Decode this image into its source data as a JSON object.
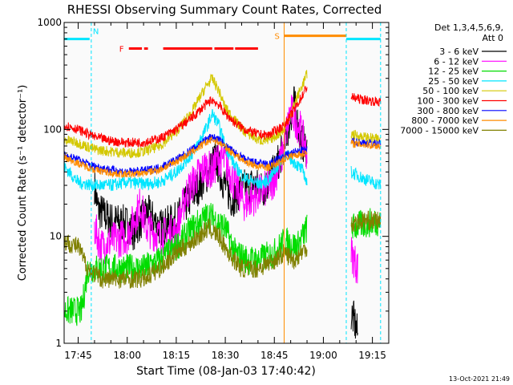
{
  "chart_data": {
    "type": "line",
    "title": "RHESSI Observing Summary Count Rates, Corrected",
    "xlabel": "Start Time (08-Jan-03 17:40:42)",
    "ylabel": "Corrected Count Rate (s⁻¹ detector⁻¹)",
    "yscale": "log",
    "ylim": [
      1,
      1000
    ],
    "xlim": [
      "17:40:42",
      "19:20:00"
    ],
    "x_ticks": [
      "17:45",
      "18:00",
      "18:15",
      "18:30",
      "18:45",
      "19:00",
      "19:15"
    ],
    "y_ticks": [
      "1",
      "10",
      "100",
      "1000"
    ],
    "legend_position": "top-right",
    "legend_title": [
      "Det 1,3,4,5,6,9,",
      "Att 0"
    ],
    "timestamp": "13-Oct-2021 21:49",
    "flags": [
      {
        "label": "N",
        "color": "#00e5ff",
        "segments": [
          [
            "17:40:42",
            "17:48:30"
          ],
          [
            "19:07:00",
            "19:17:30"
          ]
        ],
        "level": 700
      },
      {
        "label": "F",
        "color": "#ff0000",
        "segments": [
          [
            "18:00:30",
            "18:04:30"
          ],
          [
            "18:05:10",
            "18:06:20"
          ],
          [
            "18:11:00",
            "18:26:00"
          ],
          [
            "18:26:40",
            "18:32:30"
          ],
          [
            "18:33:00",
            "18:40:00"
          ]
        ],
        "level": 570
      },
      {
        "label": "S",
        "color": "#ff8c00",
        "segments": [
          [
            "18:48:00",
            "19:07:00"
          ]
        ],
        "level": 750
      }
    ],
    "vertical_markers": [
      {
        "time": "17:49:00",
        "color": "#00e5ff"
      },
      {
        "time": "18:48:00",
        "color": "#ff8c00"
      },
      {
        "time": "19:07:00",
        "color": "#00e5ff"
      },
      {
        "time": "19:17:30",
        "color": "#00e5ff"
      }
    ],
    "series": [
      {
        "name": "3 - 6 keV",
        "color": "#000000",
        "noise": 0.18,
        "segments": [
          [
            [
              "17:50:00",
              30
            ],
            [
              "17:51:00",
              18
            ],
            [
              "17:55:00",
              14
            ],
            [
              "18:00:00",
              13
            ],
            [
              "18:02:00",
              11
            ],
            [
              "18:06:00",
              17
            ],
            [
              "18:10:00",
              12
            ],
            [
              "18:15:00",
              14
            ],
            [
              "18:18:00",
              20
            ],
            [
              "18:22:00",
              30
            ],
            [
              "18:25:00",
              40
            ],
            [
              "18:27:00",
              55
            ],
            [
              "18:29:00",
              35
            ],
            [
              "18:32:00",
              22
            ],
            [
              "18:35:00",
              28
            ],
            [
              "18:38:00",
              30
            ],
            [
              "18:42:00",
              28
            ],
            [
              "18:45:00",
              40
            ],
            [
              "18:48:00",
              70
            ],
            [
              "18:51:00",
              180
            ],
            [
              "18:53:00",
              80
            ],
            [
              "18:55:00",
              65
            ]
          ],
          [
            [
              "19:08:30",
              1.9
            ],
            [
              "19:09:30",
              1.6
            ],
            [
              "19:10:30",
              1.2
            ]
          ]
        ]
      },
      {
        "name": "6 - 12 keV",
        "color": "#ff00ff",
        "noise": 0.18,
        "segments": [
          [
            [
              "17:50:00",
              12
            ],
            [
              "17:52:00",
              8
            ],
            [
              "17:55:00",
              9
            ],
            [
              "18:00:00",
              10
            ],
            [
              "18:04:00",
              20
            ],
            [
              "18:06:00",
              12
            ],
            [
              "18:10:00",
              10
            ],
            [
              "18:15:00",
              11
            ],
            [
              "18:18:00",
              25
            ],
            [
              "18:21:00",
              35
            ],
            [
              "18:24:00",
              45
            ],
            [
              "18:26:00",
              40
            ],
            [
              "18:28:00",
              55
            ],
            [
              "18:30:00",
              50
            ],
            [
              "18:33:00",
              30
            ],
            [
              "18:36:00",
              20
            ],
            [
              "18:40:00",
              25
            ],
            [
              "18:44:00",
              30
            ],
            [
              "18:47:00",
              50
            ],
            [
              "18:50:00",
              150
            ],
            [
              "18:53:00",
              100
            ],
            [
              "18:55:00",
              60
            ]
          ],
          [
            [
              "19:08:30",
              7
            ],
            [
              "19:09:30",
              6
            ],
            [
              "19:10:30",
              5
            ]
          ]
        ]
      },
      {
        "name": "12 - 25 keV",
        "color": "#00dd00",
        "noise": 0.14,
        "segments": [
          [
            [
              "17:40:42",
              2
            ],
            [
              "17:46:00",
              2
            ],
            [
              "17:48:00",
              5
            ],
            [
              "17:52:00",
              5
            ],
            [
              "18:00:00",
              5
            ],
            [
              "18:05:00",
              5
            ],
            [
              "18:10:00",
              6
            ],
            [
              "18:15:00",
              8
            ],
            [
              "18:20:00",
              12
            ],
            [
              "18:25:00",
              16
            ],
            [
              "18:30:00",
              12
            ],
            [
              "18:33:00",
              7
            ],
            [
              "18:37:00",
              6
            ],
            [
              "18:40:00",
              6
            ],
            [
              "18:45:00",
              7
            ],
            [
              "18:48:00",
              9
            ],
            [
              "18:52:00",
              8
            ],
            [
              "18:55:00",
              12
            ]
          ],
          [
            [
              "19:08:30",
              12
            ],
            [
              "19:12:00",
              13
            ],
            [
              "19:17:30",
              14
            ]
          ]
        ]
      },
      {
        "name": "25 - 50 keV",
        "color": "#00e5ff",
        "noise": 0.06,
        "segments": [
          [
            [
              "17:40:42",
              45
            ],
            [
              "17:45:00",
              32
            ],
            [
              "17:50:00",
              30
            ],
            [
              "17:55:00",
              30
            ],
            [
              "18:00:00",
              32
            ],
            [
              "18:05:00",
              31
            ],
            [
              "18:10:00",
              32
            ],
            [
              "18:15:00",
              40
            ],
            [
              "18:20:00",
              60
            ],
            [
              "18:24:00",
              100
            ],
            [
              "18:26:00",
              140
            ],
            [
              "18:28:00",
              110
            ],
            [
              "18:30:00",
              70
            ],
            [
              "18:33:00",
              45
            ],
            [
              "18:36:00",
              35
            ],
            [
              "18:40:00",
              31
            ],
            [
              "18:43:00",
              33
            ],
            [
              "18:46:00",
              45
            ],
            [
              "18:48:00",
              60
            ],
            [
              "18:51:00",
              50
            ],
            [
              "18:54:00",
              40
            ],
            [
              "18:55:00",
              30
            ]
          ],
          [
            [
              "19:08:30",
              40
            ],
            [
              "19:12:00",
              35
            ],
            [
              "19:17:30",
              30
            ]
          ]
        ]
      },
      {
        "name": "50 - 100 keV",
        "color": "#d4c800",
        "noise": 0.05,
        "segments": [
          [
            [
              "17:40:42",
              80
            ],
            [
              "17:45:00",
              75
            ],
            [
              "17:50:00",
              65
            ],
            [
              "17:55:00",
              62
            ],
            [
              "18:00:00",
              60
            ],
            [
              "18:05:00",
              62
            ],
            [
              "18:10:00",
              70
            ],
            [
              "18:15:00",
              95
            ],
            [
              "18:20:00",
              150
            ],
            [
              "18:24:00",
              250
            ],
            [
              "18:26:00",
              300
            ],
            [
              "18:28:00",
              230
            ],
            [
              "18:30:00",
              160
            ],
            [
              "18:33:00",
              120
            ],
            [
              "18:36:00",
              95
            ],
            [
              "18:40:00",
              80
            ],
            [
              "18:43:00",
              78
            ],
            [
              "18:46:00",
              90
            ],
            [
              "18:48:00",
              100
            ],
            [
              "18:52:00",
              200
            ],
            [
              "18:55:00",
              330
            ]
          ],
          [
            [
              "19:08:30",
              90
            ],
            [
              "19:12:00",
              85
            ],
            [
              "19:17:30",
              80
            ]
          ]
        ]
      },
      {
        "name": "100 - 300 keV",
        "color": "#ff0000",
        "noise": 0.045,
        "segments": [
          [
            [
              "17:40:42",
              110
            ],
            [
              "17:45:00",
              100
            ],
            [
              "17:50:00",
              85
            ],
            [
              "17:55:00",
              78
            ],
            [
              "18:00:00",
              75
            ],
            [
              "18:05:00",
              76
            ],
            [
              "18:10:00",
              82
            ],
            [
              "18:15:00",
              100
            ],
            [
              "18:20:00",
              130
            ],
            [
              "18:24:00",
              170
            ],
            [
              "18:26:00",
              190
            ],
            [
              "18:28:00",
              170
            ],
            [
              "18:30:00",
              140
            ],
            [
              "18:33:00",
              115
            ],
            [
              "18:36:00",
              100
            ],
            [
              "18:40:00",
              90
            ],
            [
              "18:43:00",
              88
            ],
            [
              "18:46:00",
              100
            ],
            [
              "18:48:00",
              110
            ],
            [
              "18:51:00",
              150
            ],
            [
              "18:55:00",
              250
            ]
          ],
          [
            [
              "19:08:30",
              200
            ],
            [
              "19:12:00",
              190
            ],
            [
              "19:17:30",
              180
            ]
          ]
        ]
      },
      {
        "name": "300 - 800 keV",
        "color": "#0000ff",
        "noise": 0.04,
        "segments": [
          [
            [
              "17:40:42",
              58
            ],
            [
              "17:45:00",
              52
            ],
            [
              "17:50:00",
              45
            ],
            [
              "17:55:00",
              42
            ],
            [
              "18:00:00",
              40
            ],
            [
              "18:05:00",
              41
            ],
            [
              "18:10:00",
              44
            ],
            [
              "18:15:00",
              52
            ],
            [
              "18:20:00",
              65
            ],
            [
              "18:24:00",
              80
            ],
            [
              "18:26:00",
              85
            ],
            [
              "18:28:00",
              80
            ],
            [
              "18:30:00",
              70
            ],
            [
              "18:33:00",
              60
            ],
            [
              "18:36:00",
              52
            ],
            [
              "18:40:00",
              48
            ],
            [
              "18:43:00",
              47
            ],
            [
              "18:46:00",
              52
            ],
            [
              "18:49:00",
              58
            ],
            [
              "18:52:00",
              62
            ],
            [
              "18:55:00",
              64
            ]
          ],
          [
            [
              "19:08:30",
              77
            ],
            [
              "19:12:00",
              75
            ],
            [
              "19:17:30",
              73
            ]
          ]
        ]
      },
      {
        "name": "800 - 7000 keV",
        "color": "#ff8c00",
        "noise": 0.035,
        "segments": [
          [
            [
              "17:40:42",
              55
            ],
            [
              "17:45:00",
              48
            ],
            [
              "17:50:00",
              42
            ],
            [
              "17:55:00",
              39
            ],
            [
              "18:00:00",
              38
            ],
            [
              "18:05:00",
              39
            ],
            [
              "18:10:00",
              42
            ],
            [
              "18:15:00",
              50
            ],
            [
              "18:20:00",
              62
            ],
            [
              "18:24:00",
              75
            ],
            [
              "18:26:00",
              80
            ],
            [
              "18:28:00",
              76
            ],
            [
              "18:30:00",
              68
            ],
            [
              "18:33:00",
              58
            ],
            [
              "18:36:00",
              50
            ],
            [
              "18:40:00",
              45
            ],
            [
              "18:43:00",
              44
            ],
            [
              "18:46:00",
              48
            ],
            [
              "18:49:00",
              55
            ],
            [
              "18:52:00",
              58
            ],
            [
              "18:55:00",
              60
            ]
          ],
          [
            [
              "19:08:30",
              74
            ],
            [
              "19:12:00",
              72
            ],
            [
              "19:17:30",
              70
            ]
          ]
        ]
      },
      {
        "name": "7000 - 15000 keV",
        "color": "#808000",
        "noise": 0.09,
        "segments": [
          [
            [
              "17:40:42",
              9
            ],
            [
              "17:45:00",
              8
            ],
            [
              "17:48:00",
              5
            ],
            [
              "17:52:00",
              4
            ],
            [
              "18:00:00",
              4
            ],
            [
              "18:05:00",
              4
            ],
            [
              "18:10:00",
              5
            ],
            [
              "18:15:00",
              7
            ],
            [
              "18:20:00",
              9
            ],
            [
              "18:25:00",
              12
            ],
            [
              "18:28:00",
              10
            ],
            [
              "18:31:00",
              7
            ],
            [
              "18:35:00",
              5
            ],
            [
              "18:40:00",
              5
            ],
            [
              "18:45:00",
              6
            ],
            [
              "18:48:00",
              7
            ],
            [
              "18:51:00",
              6
            ],
            [
              "18:55:00",
              8
            ]
          ],
          [
            [
              "19:08:30",
              13
            ],
            [
              "19:12:00",
              14
            ],
            [
              "19:17:30",
              14
            ]
          ]
        ]
      }
    ]
  }
}
